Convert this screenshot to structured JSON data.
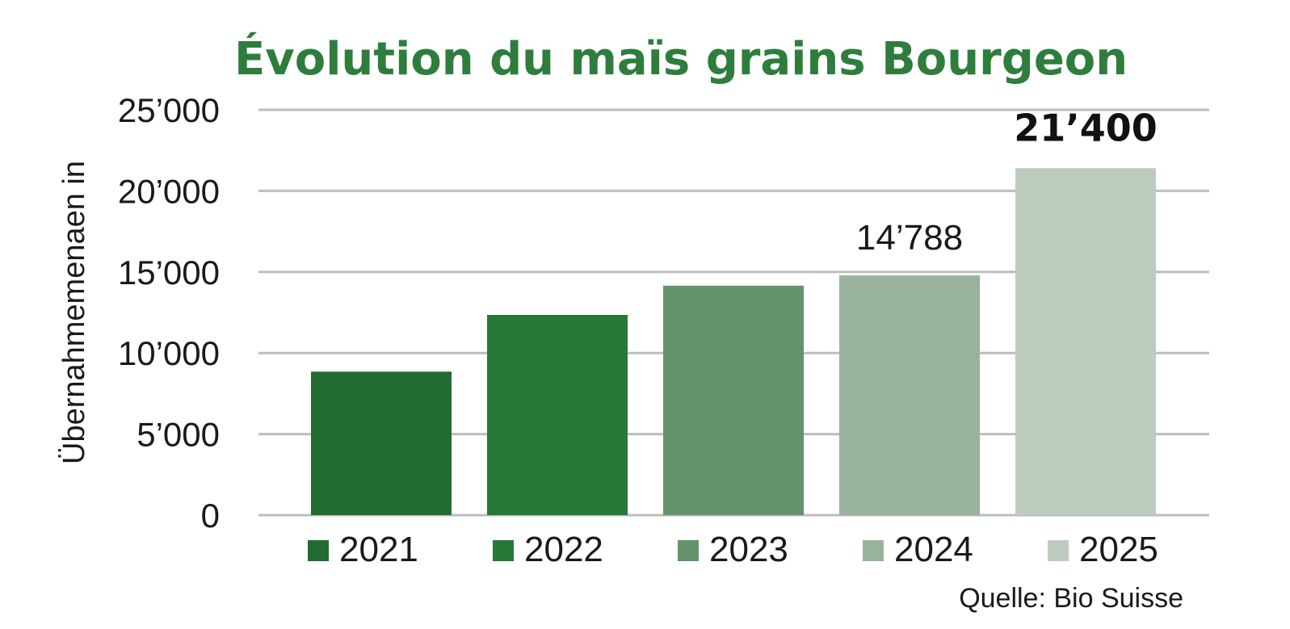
{
  "chart_data": {
    "type": "bar",
    "title": "Évolution du maïs grains Bourgeon",
    "ylabel": "Übernahmemenaen in",
    "xlabel": "",
    "ylim": [
      0,
      25000
    ],
    "yticks": [
      {
        "value": 0,
        "label": "0"
      },
      {
        "value": 5000,
        "label": "5’000"
      },
      {
        "value": 10000,
        "label": "10’000"
      },
      {
        "value": 15000,
        "label": "15’000"
      },
      {
        "value": 20000,
        "label": "20’000"
      },
      {
        "value": 25000,
        "label": "25’000"
      }
    ],
    "grid": true,
    "legend_position": "bottom",
    "categories": [
      "2021",
      "2022",
      "2023",
      "2024",
      "2025"
    ],
    "values": [
      8850,
      12350,
      14150,
      14788,
      21400
    ],
    "colors": [
      "#226b31",
      "#277838",
      "#63936a",
      "#99b29b",
      "#bdcbbe"
    ],
    "data_labels": [
      {
        "index": 3,
        "text": "14’788",
        "bold": false
      },
      {
        "index": 4,
        "text": "21’400",
        "bold": true
      }
    ],
    "source": "Quelle: Bio Suisse"
  }
}
